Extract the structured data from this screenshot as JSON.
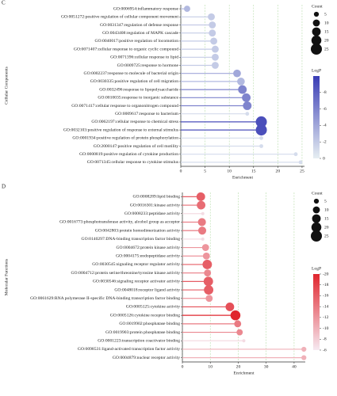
{
  "chart_data": [
    {
      "type": "lollipop",
      "panel": "C",
      "ylabel": "Cellular Components",
      "xlabel": "Enrichment",
      "categories": [
        "GO:0006954:inflammatory response",
        "GO:0051272:positive regulation of cellular component movement",
        "GO:0031347:regulation of defense response",
        "GO:0043408:regulation of MAPK cascade",
        "GO:0040017:positive regulation of locomotion",
        "GO:0071407:cellular response to organic cyclic compound",
        "GO:0071396:cellular response to lipid",
        "GO:0009725:response to hormone",
        "GO:0002237:response to molecule of bacterial origin",
        "GO:0030335:positive regulation of cell migration",
        "GO:0032496:response to lipopolysaccharide",
        "GO:0010035:response to inorganic substance",
        "GO:0071417:cellular response to organonitrogen compound",
        "GO:0009617:response to bacterium",
        "GO:0062197:cellular response to chemical stress",
        "GO:0032103:positive regulation of response to external stimulus",
        "GO:0001934:positive regulation of protein phosphorylation",
        "GO:2000147:positive regulation of cell motility",
        "GO:0000819:positive regulation of cytokine production",
        "GO:0071345:cellular response to cytokine stimulus"
      ],
      "values": [
        1.3,
        6.3,
        6.5,
        6.5,
        6.8,
        7.1,
        7.1,
        7.1,
        11.6,
        12.4,
        12.7,
        13.5,
        13.7,
        13.7,
        16.6,
        16.6,
        16.6,
        16.6,
        23.7,
        24.7
      ],
      "counts": [
        8,
        10,
        10,
        10,
        10,
        10,
        10,
        10,
        12,
        12,
        15,
        15,
        15,
        3,
        25,
        25,
        3,
        3,
        3,
        3
      ],
      "logp": [
        -3,
        -2,
        -2,
        -2,
        -2,
        -2,
        -2,
        -2,
        -4,
        -3,
        -6,
        -6,
        -6,
        -1,
        -9,
        -9,
        -1,
        -1,
        -1,
        -1
      ],
      "xlim": [
        0,
        25.5
      ],
      "xticks": [
        0,
        5,
        10,
        15,
        20,
        25
      ],
      "grid": true,
      "grid_color": "#b5dca8",
      "size_title": "Count",
      "size_ticks": [
        5,
        10,
        15,
        20,
        25
      ],
      "color_title": "LogP",
      "colorlim": [
        -10,
        0
      ],
      "colorticks": [
        -8,
        -6,
        -4,
        -2,
        0
      ],
      "cmap": [
        "#3a3db5",
        "#e6eef2"
      ]
    },
    {
      "type": "lollipop",
      "panel": "D",
      "ylabel": "Molecular Functions",
      "xlabel": "Enrichment",
      "categories": [
        "GO:0008289:lipid binding",
        "GO:0016301:kinase activity",
        "GO:0008233:peptidase activity",
        "GO:0016773:phosphotransferase activity, alcohol group as acceptor",
        "GO:0042803:protein homodimerization activity",
        "GO:0140297:DNA-binding transcription factor binding",
        "GO:0004672:protein kinase activity",
        "GO:0004175:endopeptidase activity",
        "GO:0030545:signaling receptor regulator activity",
        "GO:0004712:protein serine/threonine/tyrosine kinase activity",
        "GO:0030546:signaling receptor activator activity",
        "GO:0048018:receptor ligand activity",
        "GO:0061629:RNA polymerase II-specific DNA-binding transcription factor binding",
        "GO:0005125:cytokine activity",
        "GO:0005126:cytokine receptor binding",
        "GO:0019902:phosphatase binding",
        "GO:0019903:protein phosphatase binding",
        "GO:0001223:transcription coactivator binding",
        "GO:0098531:ligand-activated transcription factor activity",
        "GO:0004879:nuclear receptor activity"
      ],
      "values": [
        6.6,
        6.7,
        7.3,
        7,
        7.1,
        7.3,
        8.3,
        8.6,
        8.9,
        9,
        9.3,
        9.4,
        9.6,
        17,
        19,
        19.8,
        20.5,
        22,
        43.5,
        43.5
      ],
      "counts": [
        15,
        15,
        2,
        13,
        13,
        2,
        10,
        10,
        18,
        10,
        18,
        18,
        10,
        15,
        20,
        10,
        8,
        2,
        5,
        5
      ],
      "logp": [
        -16,
        -15,
        -7,
        -14,
        -14,
        -7,
        -12,
        -12,
        -16,
        -13,
        -16,
        -16,
        -12,
        -17,
        -20,
        -14,
        -13,
        -7,
        -10,
        -10
      ],
      "xlim": [
        0,
        44
      ],
      "xticks": [
        0,
        10,
        20,
        30,
        40
      ],
      "grid": true,
      "grid_color": "#b5dca8",
      "size_title": "Count",
      "size_ticks": [
        5,
        10,
        15,
        20,
        25
      ],
      "color_title": "LogP",
      "colorlim": [
        -20,
        -6
      ],
      "colorticks": [
        -20,
        -18,
        -16,
        -14,
        -12,
        -10,
        -8,
        -6
      ],
      "cmap": [
        "#e0262e",
        "#f6e9f1"
      ]
    }
  ]
}
